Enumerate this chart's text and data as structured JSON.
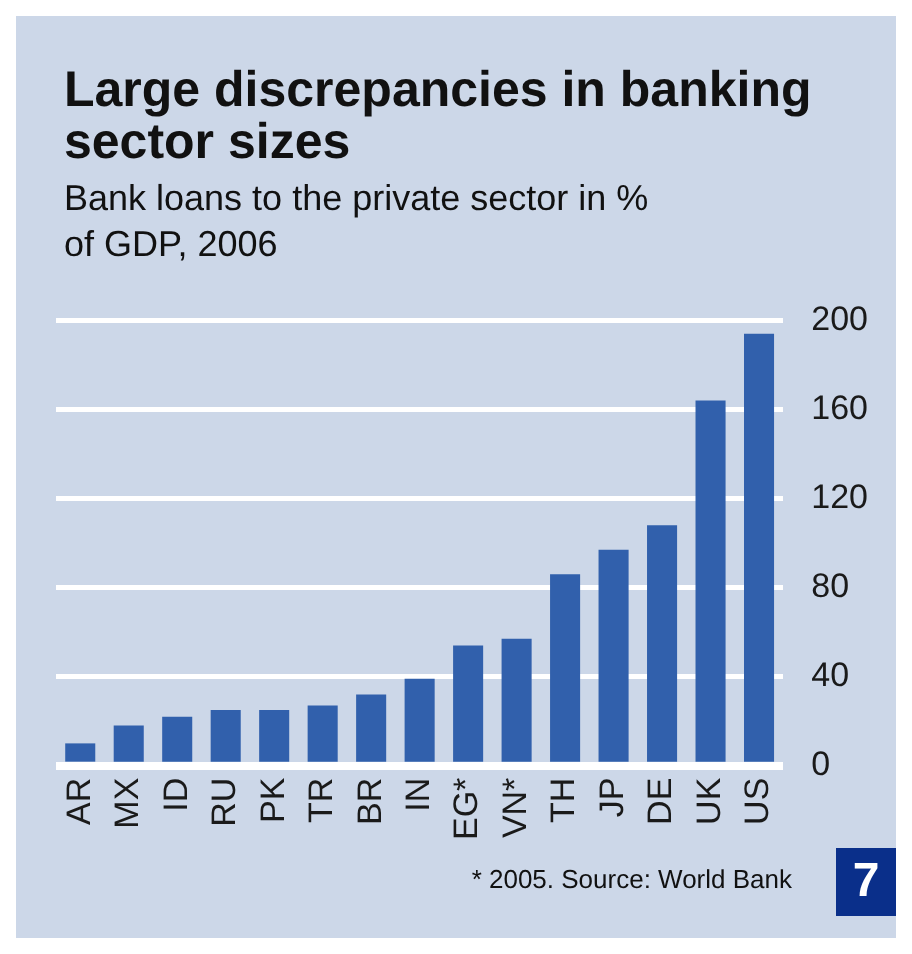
{
  "chart_data": {
    "type": "bar",
    "title": "Large discrepancies in banking sector sizes",
    "subtitle": "Bank loans to the private sector in % of GDP, 2006",
    "categories": [
      "AR",
      "MX",
      "ID",
      "RU",
      "PK",
      "TR",
      "BR",
      "IN",
      "EG*",
      "VN*",
      "TH",
      "JP",
      "DE",
      "UK",
      "US"
    ],
    "values": [
      10,
      18,
      22,
      25,
      25,
      27,
      32,
      39,
      54,
      57,
      86,
      97,
      108,
      164,
      194
    ],
    "color": "#3160ac",
    "ylim": [
      0,
      200
    ],
    "yticks": [
      0,
      40,
      80,
      120,
      160,
      200
    ],
    "grid": "y",
    "annotations": [
      "* 2005. Source: World Bank",
      "7"
    ]
  }
}
